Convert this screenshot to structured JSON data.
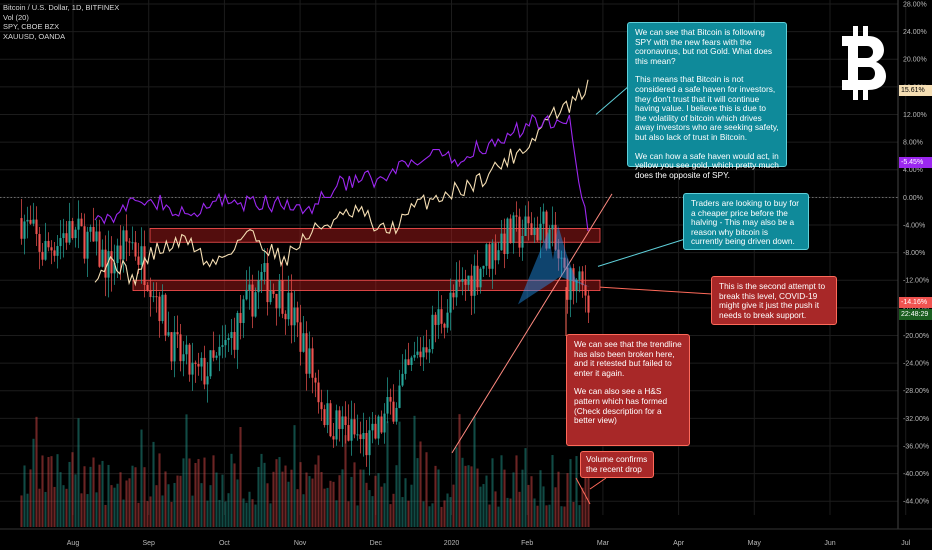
{
  "legend": {
    "line1": "Bitcoin / U.S. Dollar, 1D, BITFINEX",
    "line2": "Vol (20)",
    "line3": "SPY, CBOE BZX",
    "line4": "XAUUSD, OANDA"
  },
  "notes": {
    "safe_haven": [
      "We can see that Bitcoin is following SPY with the new fears with the coronavirus, but not Gold. What does this mean?",
      "This means that Bitcoin is not considered a safe haven for investors, they don't trust that it will continue having value. I believe this is due to the volatility of bitcoin which drives away investors who are seeking safety, but also lack of trust in Bitcoin.",
      "We can how a safe haven would act, in yellow you see gold, which pretty much does the opposite of SPY."
    ],
    "traders": "Traders are looking to buy for a cheaper price before the halving - This may also be a reason why bitcoin is currently being driven down.",
    "second_attempt": "This is the second attempt to break this level, COVID-19 might give it just the push it needs to break support.",
    "trendline": [
      "We can see that the trendline has also been broken here, and it retested but failed to enter it again.",
      "We can also see a H&S pattern which has formed (Check description for a better view)"
    ],
    "volume": "Volume confirms the recent drop"
  },
  "price_tags": {
    "gold": "15.61%",
    "spy": "-5.45%",
    "btc": "-14.16%",
    "timer": "22:48:29"
  },
  "colors": {
    "up": "#26a69a",
    "down": "#ef5350",
    "gold": "#f5deb3",
    "spy": "#9c27f0",
    "zone_fill": "#b71c1c",
    "zone_border": "#ff5252",
    "trendline": "#ff8a80",
    "pattern": "#2196f3"
  },
  "chart_data": {
    "type": "line",
    "x_ticks": [
      "Aug",
      "Sep",
      "Oct",
      "Nov",
      "Dec",
      "2020",
      "Feb",
      "Mar",
      "Apr",
      "May",
      "Jun",
      "Jul"
    ],
    "y_ticks": [
      "28.00%",
      "24.00%",
      "20.00%",
      "16.00%",
      "12.00%",
      "8.00%",
      "4.00%",
      "0.00%",
      "-4.00%",
      "-8.00%",
      "-12.00%",
      "-16.00%",
      "-20.00%",
      "-24.00%",
      "-28.00%",
      "-32.00%",
      "-36.00%",
      "-40.00%",
      "-44.00%"
    ],
    "ylim": [
      -46,
      28
    ],
    "series": [
      {
        "name": "XAUUSD",
        "values": [
          -11,
          -9,
          -12,
          -8,
          -7,
          -6,
          -10,
          -8,
          -5,
          -7,
          -9,
          -6,
          -4,
          -3,
          -2,
          -5,
          -4,
          -1,
          0,
          1,
          2,
          4,
          6,
          8,
          12,
          13,
          16
        ]
      },
      {
        "name": "SPY",
        "values": [
          -2,
          -3,
          -1,
          0,
          -2,
          -3,
          -1,
          0,
          -1,
          -1,
          -1,
          -2,
          0,
          2,
          3,
          2,
          4,
          5,
          6,
          5,
          7,
          8,
          9,
          11,
          11,
          12,
          -5
        ]
      },
      {
        "name": "Bitcoin / U.S. Dollar",
        "values": [
          -3,
          -8,
          -5,
          -6,
          -10,
          -6,
          -12,
          -22,
          -26,
          -24,
          -18,
          -12,
          -14,
          -22,
          -32,
          -34,
          -36,
          -30,
          -24,
          -18,
          -14,
          -10,
          -6,
          -5,
          -4,
          -12,
          -14
        ]
      }
    ],
    "zones": [
      [
        -6.5,
        -4.5
      ],
      [
        -13.5,
        -12.0
      ]
    ]
  }
}
